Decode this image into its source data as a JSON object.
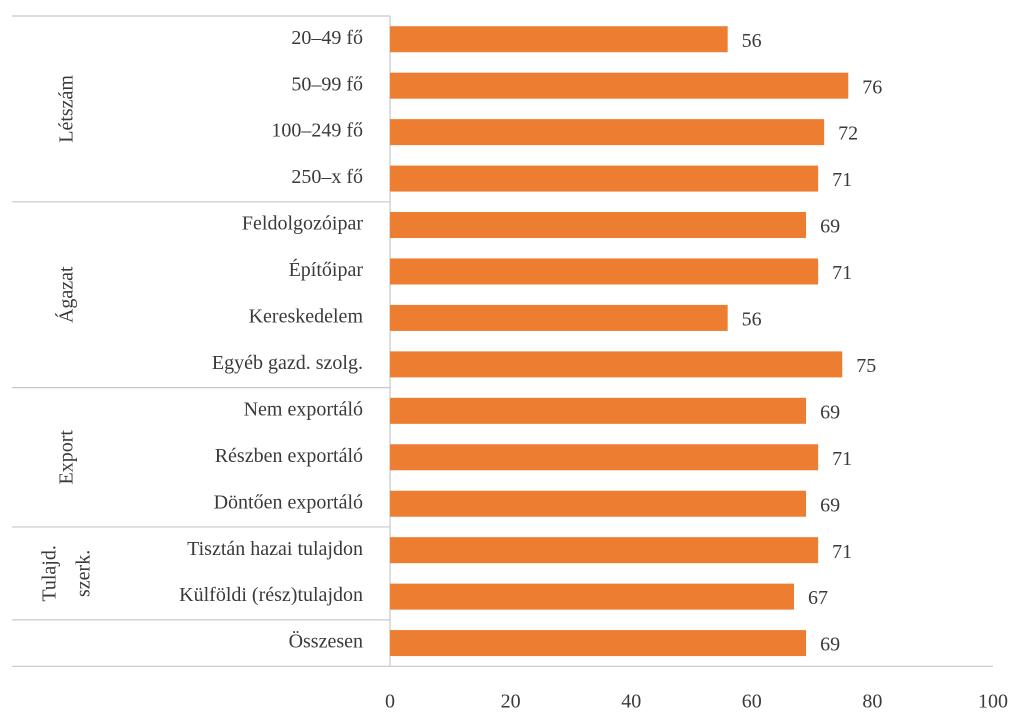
{
  "chart_data": {
    "type": "bar",
    "orientation": "horizontal",
    "categories": [
      "20–49 fő",
      "50–99 fő",
      "100–249 fő",
      "250–x fő",
      "Feldolgozóipar",
      "Építőipar",
      "Kereskedelem",
      "Egyéb gazd. szolg.",
      "Nem exportáló",
      "Részben exportáló",
      "Döntően exportáló",
      "Tisztán hazai tulajdon",
      "Külföldi (rész)tulajdon",
      "Összesen"
    ],
    "values": [
      56,
      76,
      72,
      71,
      69,
      71,
      56,
      75,
      69,
      71,
      69,
      71,
      67,
      69
    ],
    "groups": [
      {
        "label": [
          "Létszám"
        ],
        "span": 4
      },
      {
        "label": [
          "Ágazat"
        ],
        "span": 4
      },
      {
        "label": [
          "Export"
        ],
        "span": 3
      },
      {
        "label": [
          "Tulajd.",
          "szerk."
        ],
        "span": 2
      }
    ],
    "color": "#ed7d31",
    "xlim": [
      0,
      100
    ],
    "xticks": [
      0,
      20,
      40,
      60,
      80,
      100
    ],
    "grid": false
  }
}
